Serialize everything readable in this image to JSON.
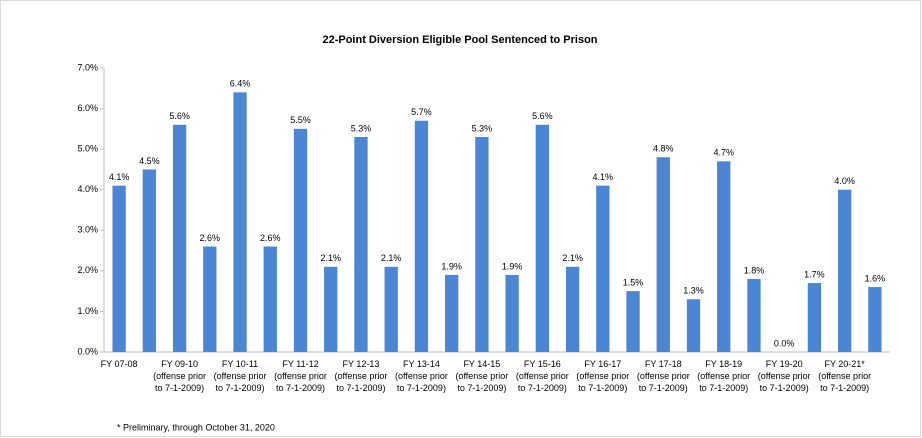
{
  "chart_data": {
    "type": "bar",
    "title": "22-Point Diversion Eligible Pool Sentenced to Prison",
    "footnote": "* Preliminary, through  October 31, 2020",
    "categories": [
      "FY 07-08",
      null,
      "FY 09-10\n(offense prior\nto 7-1-2009)",
      null,
      "FY 10-11\n(offense prior\nto 7-1-2009)",
      null,
      "FY 11-12\n(offense prior\nto 7-1-2009)",
      null,
      "FY 12-13\n(offense prior\nto 7-1-2009)",
      null,
      "FY 13-14\n(offense prior\nto 7-1-2009)",
      null,
      "FY 14-15\n(offense prior\nto 7-1-2009)",
      null,
      "FY 15-16\n(offense prior\nto 7-1-2009)",
      null,
      "FY 16-17\n(offense prior\nto 7-1-2009)",
      null,
      "FY 17-18\n(offense prior\nto 7-1-2009)",
      null,
      "FY 18-19\n(offense prior\nto 7-1-2009)",
      null,
      "FY 19-20\n(offense prior\nto 7-1-2009)",
      null,
      "FY 20-21*\n(offense prior\nto 7-1-2009)",
      null
    ],
    "values": [
      4.1,
      4.5,
      5.6,
      2.6,
      6.4,
      2.6,
      5.5,
      2.1,
      5.3,
      2.1,
      5.7,
      1.9,
      5.3,
      1.9,
      5.6,
      2.1,
      4.1,
      1.5,
      4.8,
      1.3,
      4.7,
      1.8,
      0.0,
      1.7,
      4.0,
      1.6
    ],
    "value_labels": [
      "4.1%",
      "4.5%",
      "5.6%",
      "2.6%",
      "6.4%",
      "2.6%",
      "5.5%",
      "2.1%",
      "5.3%",
      "2.1%",
      "5.7%",
      "1.9%",
      "5.3%",
      "1.9%",
      "5.6%",
      "2.1%",
      "4.1%",
      "1.5%",
      "4.8%",
      "1.3%",
      "4.7%",
      "1.8%",
      "0.0%",
      "1.7%",
      "4.0%",
      "1.6%"
    ],
    "color": "#4a86d4",
    "ylim": [
      0,
      7
    ],
    "yticks": [
      {
        "value": 0,
        "label": "0.0%"
      },
      {
        "value": 1,
        "label": "1.0%"
      },
      {
        "value": 2,
        "label": "2.0%"
      },
      {
        "value": 3,
        "label": "3.0%"
      },
      {
        "value": 4,
        "label": "4.0%"
      },
      {
        "value": 5,
        "label": "5.0%"
      },
      {
        "value": 6,
        "label": "6.0%"
      },
      {
        "value": 7,
        "label": "7.0%"
      }
    ],
    "grid": false
  }
}
